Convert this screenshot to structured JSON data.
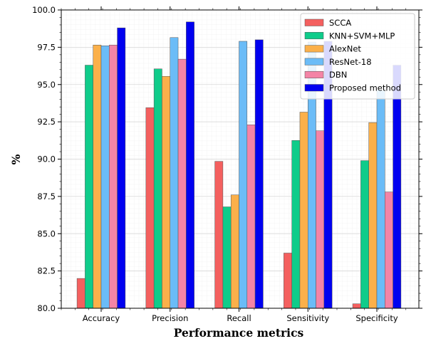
{
  "chart_data": {
    "type": "bar",
    "title": "",
    "xlabel": "Performance metrics",
    "ylabel": "%",
    "ylim": [
      80.0,
      100.0
    ],
    "yticks": [
      "80.0",
      "82.5",
      "85.0",
      "87.5",
      "90.0",
      "92.5",
      "95.0",
      "97.5",
      "100.0"
    ],
    "categories": [
      "Accuracy",
      "Precision",
      "Recall",
      "Sensitivity",
      "Specificity"
    ],
    "grid": true,
    "legend_position": "top-right",
    "series": [
      {
        "name": "SCCA",
        "color": "#f4605f",
        "values": [
          82.0,
          93.45,
          89.85,
          83.7,
          80.3
        ]
      },
      {
        "name": "KNN+SVM+MLP",
        "color": "#0fcc8a",
        "values": [
          96.3,
          96.05,
          86.8,
          91.25,
          89.9
        ]
      },
      {
        "name": "AlexNet",
        "color": "#fbb04a",
        "values": [
          97.65,
          95.55,
          87.6,
          93.15,
          92.45
        ]
      },
      {
        "name": "ResNet-18",
        "color": "#6bbcf7",
        "values": [
          97.6,
          98.15,
          97.9,
          97.85,
          94.6
        ]
      },
      {
        "name": "DBN",
        "color": "#f484a6",
        "values": [
          97.65,
          96.7,
          92.3,
          91.9,
          87.8
        ]
      },
      {
        "name": "Proposed method",
        "color": "#0000f0",
        "values": [
          98.8,
          99.2,
          98.0,
          97.9,
          96.3
        ]
      }
    ]
  }
}
